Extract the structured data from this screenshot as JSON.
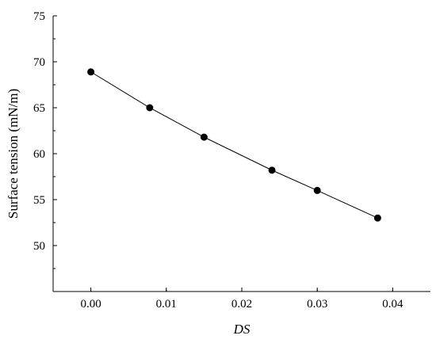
{
  "chart_data": {
    "type": "line",
    "xlabel": "DS",
    "ylabel": "Surface tension (mN/m)",
    "xlim": [
      -0.005,
      0.045
    ],
    "ylim": [
      45,
      75
    ],
    "x_ticks": [
      0.0,
      0.01,
      0.02,
      0.03,
      0.04
    ],
    "x_tick_labels": [
      "0.00",
      "0.01",
      "0.02",
      "0.03",
      "0.04"
    ],
    "y_ticks": [
      50,
      55,
      60,
      65,
      70,
      75
    ],
    "y_tick_labels": [
      "50",
      "55",
      "60",
      "65",
      "70",
      "75"
    ],
    "grid": false,
    "series": [
      {
        "x": [
          0.0,
          0.0078,
          0.015,
          0.024,
          0.03,
          0.038
        ],
        "values": [
          68.9,
          65.0,
          61.8,
          58.2,
          56.0,
          53.0
        ],
        "marker": "circle",
        "color": "#000000"
      }
    ]
  }
}
